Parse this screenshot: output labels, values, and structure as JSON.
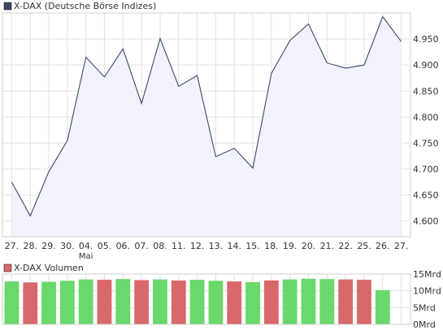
{
  "colors": {
    "price_line": "#3f4a6b",
    "price_fill": "#f1f2fb",
    "grid": "#e3e3e3",
    "axis_text": "#333333",
    "frame": "#d0d0d0",
    "legend_price_swatch": "#3c4660",
    "legend_volume_swatch": "#d9686a",
    "volume_up": "#6ad86a",
    "volume_down": "#d9686a"
  },
  "chart_data": [
    {
      "type": "area",
      "legend": "X-DAX (Deutsche Börse Indizes)",
      "x": [
        "27.",
        "28.",
        "29.",
        "30.",
        "04.",
        "05.",
        "06.",
        "07.",
        "08.",
        "11.",
        "12.",
        "13.",
        "14.",
        "15.",
        "18.",
        "19.",
        "20.",
        "21.",
        "22.",
        "25.",
        "26.",
        "27."
      ],
      "x_sublabels": {
        "4": "Mai"
      },
      "values": [
        4675,
        4610,
        4695,
        4755,
        4915,
        4877,
        4931,
        4826,
        4951,
        4859,
        4880,
        4724,
        4740,
        4702,
        4884,
        4947,
        4979,
        4904,
        4894,
        4900,
        4993,
        4945
      ],
      "yticks": [
        4600,
        4650,
        4700,
        4750,
        4800,
        4850,
        4900,
        4950
      ],
      "ytick_labels": [
        "4.600",
        "4.650",
        "4.700",
        "4.750",
        "4.800",
        "4.850",
        "4.900",
        "4.950"
      ],
      "ylim": [
        4570,
        5000
      ],
      "grid": true,
      "y_axis_side": "right"
    },
    {
      "type": "bar",
      "legend": "X-DAX Volumen",
      "categories": [
        "27.",
        "28.",
        "29.",
        "30.",
        "04.",
        "05.",
        "06.",
        "07.",
        "08.",
        "11.",
        "12.",
        "13.",
        "14.",
        "15.",
        "18.",
        "19.",
        "20.",
        "21.",
        "22.",
        "25.",
        "26.",
        "27."
      ],
      "values": [
        12.8,
        12.5,
        12.7,
        13.0,
        13.4,
        13.3,
        13.5,
        13.2,
        13.4,
        13.1,
        13.3,
        13.0,
        12.8,
        12.6,
        13.1,
        13.4,
        13.6,
        13.5,
        13.4,
        13.3,
        10.2,
        0
      ],
      "direction": [
        "up",
        "down",
        "up",
        "up",
        "up",
        "down",
        "up",
        "down",
        "up",
        "down",
        "up",
        "up",
        "down",
        "up",
        "down",
        "up",
        "up",
        "up",
        "down",
        "down",
        "up",
        "up"
      ],
      "yticks": [
        0,
        5,
        10,
        15
      ],
      "ytick_labels": [
        "0Mrd",
        "5Mrd",
        "10Mrd",
        "15Mrd"
      ],
      "ylim": [
        0,
        15
      ],
      "grid": true,
      "y_axis_side": "right"
    }
  ]
}
